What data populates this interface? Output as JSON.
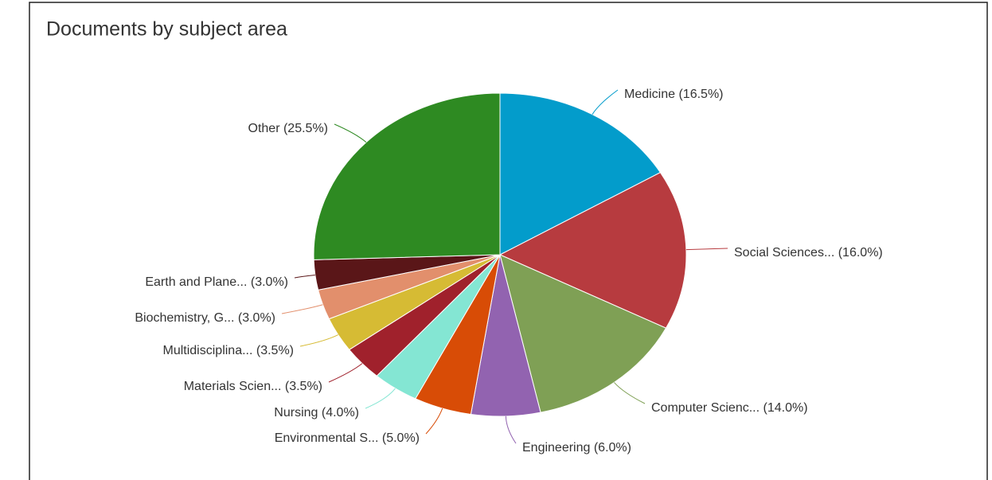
{
  "chart_data": {
    "type": "pie",
    "title": "Documents by subject area",
    "values": [
      16.5,
      16.0,
      14.0,
      6.0,
      5.0,
      4.0,
      3.5,
      3.5,
      3.0,
      3.0,
      25.5
    ],
    "value_labels": [
      "Medicine (16.5%)",
      "Social Sciences... (16.0%)",
      "Computer Scienc... (14.0%)",
      "Engineering (6.0%)",
      "Environmental S... (5.0%)",
      "Nursing (4.0%)",
      "Materials Scien... (3.5%)",
      "Multidisciplina... (3.5%)",
      "Biochemistry, G... (3.0%)",
      "Earth and Plane... (3.0%)",
      "Other (25.5%)"
    ],
    "colors": [
      "#039ccb",
      "#b73b3f",
      "#7fa055",
      "#9263b0",
      "#d84c06",
      "#84e6d3",
      "#a0212c",
      "#d6bb34",
      "#e28f6c",
      "#5a1618",
      "#2e8a22"
    ]
  }
}
